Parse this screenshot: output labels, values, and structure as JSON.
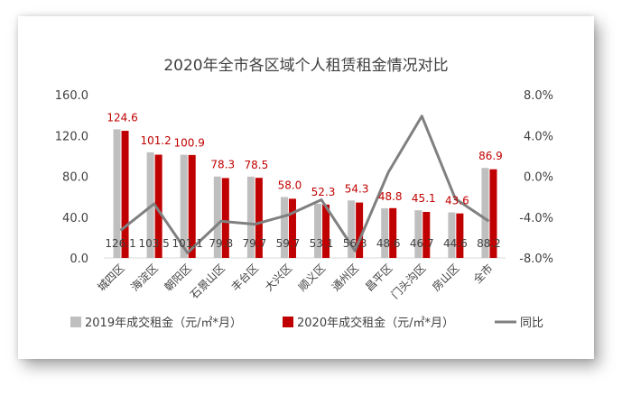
{
  "chart_data": {
    "type": "bar",
    "title": "2020年全市各区域个人租赁租金情况对比",
    "categories": [
      "城四区",
      "海淀区",
      "朝阳区",
      "石景山区",
      "丰台区",
      "大兴区",
      "顺义区",
      "通州区",
      "昌平区",
      "门头沟区",
      "房山区",
      "全市"
    ],
    "series": [
      {
        "name": "2019年成交租金（元/㎡*月）",
        "type": "bar",
        "axis": "left",
        "color": "#bfbfbf",
        "values": [
          126.1,
          103.5,
          101.1,
          79.8,
          79.7,
          59.7,
          53.1,
          56.3,
          48.6,
          46.7,
          44.6,
          88.2
        ]
      },
      {
        "name": "2020年成交租金（元/㎡*月）",
        "type": "bar",
        "axis": "left",
        "color": "#c00000",
        "values": [
          124.6,
          101.2,
          100.9,
          78.3,
          78.5,
          58.0,
          52.3,
          54.3,
          48.8,
          45.1,
          43.6,
          86.9
        ]
      },
      {
        "name": "同比",
        "type": "line",
        "axis": "right",
        "color": "#808080",
        "values": [
          -5.3,
          -2.7,
          -7.5,
          -4.4,
          -4.7,
          -3.8,
          -2.3,
          -7.3,
          0.4,
          5.9,
          -2.2,
          -4.4
        ]
      }
    ],
    "top_labels": [
      "124.6",
      "101.2",
      "100.9",
      "78.3",
      "78.5",
      "58.0",
      "52.3",
      "54.3",
      "48.8",
      "45.1",
      "43.6",
      "86.9"
    ],
    "inner_labels": [
      "126.1",
      "103.5",
      "101.1",
      "79.8",
      "79.7",
      "59.7",
      "53.1",
      "56.3",
      "48.6",
      "46.7",
      "44.6",
      "88.2"
    ],
    "y_left": {
      "min": 0,
      "max": 160,
      "ticks": [
        "0.0",
        "40.0",
        "80.0",
        "120.0",
        "160.0"
      ]
    },
    "y_right": {
      "min": -8,
      "max": 8,
      "ticks": [
        "-8.0%",
        "-4.0%",
        "0.0%",
        "4.0%",
        "8.0%"
      ]
    },
    "grid": false,
    "legend_position": "bottom"
  }
}
